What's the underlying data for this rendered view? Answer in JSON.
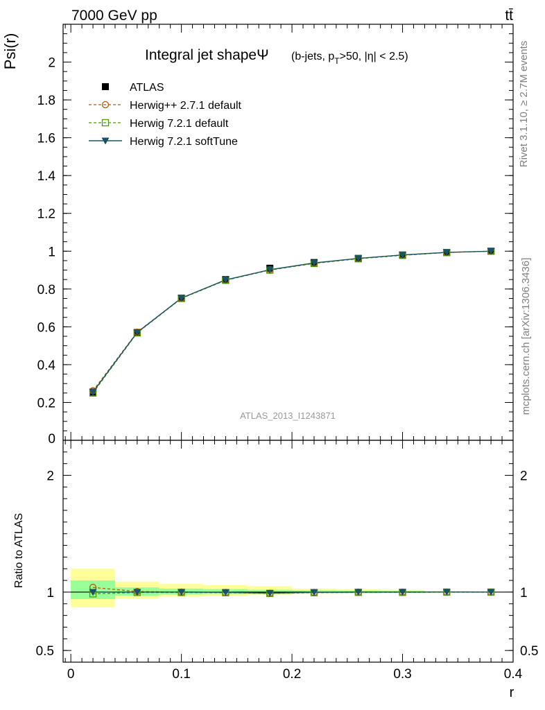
{
  "header": {
    "left": "7000 GeV pp",
    "right": "tt̄"
  },
  "side_labels": {
    "rivet": "Rivet 3.1.10, ≥ 2.7M events",
    "mcplots": "mcplots.cern.ch [arXiv:1306.3436]"
  },
  "watermark": "ATLAS_2013_I1243871",
  "colors": {
    "atlas": "#000000",
    "herwigpp": "#b35900",
    "herwig72": "#4d9900",
    "softtune": "#1a5266",
    "band_inner": "#99ff99",
    "band_outer": "#ffff99"
  },
  "chart_data": [
    {
      "type": "line",
      "title": "Integral jet shapeΨ",
      "title_parts": {
        "main": "Integral jet shapeΨ",
        "sub_open": "(b-jets, p",
        "sub_index": "T",
        "sub_rest": ">50, |η| < 2.5)"
      },
      "ylabel": "Psi(r)",
      "ylim": [
        0,
        2.2
      ],
      "xlim": [
        -0.007,
        0.4
      ],
      "yticks": [
        {
          "v": 0,
          "label": "0"
        },
        {
          "v": 0.2,
          "label": "0.2"
        },
        {
          "v": 0.4,
          "label": "0.4"
        },
        {
          "v": 0.6,
          "label": "0.6"
        },
        {
          "v": 0.8,
          "label": "0.8"
        },
        {
          "v": 1,
          "label": "1"
        },
        {
          "v": 1.2,
          "label": "1.2"
        },
        {
          "v": 1.4,
          "label": "1.4"
        },
        {
          "v": 1.6,
          "label": "1.6"
        },
        {
          "v": 1.8,
          "label": "1.8"
        },
        {
          "v": 2,
          "label": "2"
        }
      ],
      "x": [
        0.02,
        0.06,
        0.1,
        0.14,
        0.18,
        0.22,
        0.26,
        0.3,
        0.34,
        0.38
      ],
      "series": [
        {
          "name": "ATLAS",
          "values": [
            0.255,
            0.57,
            0.752,
            0.85,
            0.91,
            0.94,
            0.962,
            0.98,
            0.993,
            1.0
          ]
        },
        {
          "name": "Herwig++ 2.7.1 default",
          "values": [
            0.262,
            0.572,
            0.752,
            0.848,
            0.902,
            0.937,
            0.962,
            0.98,
            0.993,
            1.0
          ]
        },
        {
          "name": "Herwig 7.2.1 default",
          "values": [
            0.25,
            0.568,
            0.75,
            0.846,
            0.9,
            0.935,
            0.96,
            0.978,
            0.993,
            1.0
          ]
        },
        {
          "name": "Herwig 7.2.1 softTune",
          "values": [
            0.255,
            0.57,
            0.752,
            0.848,
            0.902,
            0.938,
            0.962,
            0.98,
            0.994,
            1.0
          ]
        }
      ]
    },
    {
      "type": "line",
      "ylabel": "Ratio to ATLAS",
      "xlabel": "r",
      "ylim": [
        0.4,
        2.3
      ],
      "xlim": [
        -0.007,
        0.4
      ],
      "yticks": [
        {
          "v": 0.5,
          "label": "0.5"
        },
        {
          "v": 1,
          "label": "1"
        },
        {
          "v": 2,
          "label": "2"
        }
      ],
      "xticks": [
        {
          "v": 0,
          "label": "0"
        },
        {
          "v": 0.1,
          "label": "0.1"
        },
        {
          "v": 0.2,
          "label": "0.2"
        },
        {
          "v": 0.3,
          "label": "0.3"
        },
        {
          "v": 0.4,
          "label": "0.4"
        }
      ],
      "x": [
        0.02,
        0.06,
        0.1,
        0.14,
        0.18,
        0.22,
        0.26,
        0.3,
        0.34,
        0.38
      ],
      "bands": {
        "edges": [
          0.0,
          0.04,
          0.08,
          0.12,
          0.16,
          0.2,
          0.24,
          0.28,
          0.32,
          0.36,
          0.4
        ],
        "inner": [
          [
            0.94,
            1.1
          ],
          [
            0.97,
            1.04
          ],
          [
            0.98,
            1.03
          ],
          [
            0.985,
            1.025
          ],
          [
            0.985,
            1.02
          ],
          [
            0.99,
            1.015
          ],
          [
            0.99,
            1.012
          ],
          [
            0.993,
            1.01
          ],
          [
            0.996,
            1.005
          ],
          [
            0.998,
            1.002
          ]
        ],
        "outer": [
          [
            0.87,
            1.2
          ],
          [
            0.945,
            1.09
          ],
          [
            0.96,
            1.07
          ],
          [
            0.965,
            1.06
          ],
          [
            0.975,
            1.05
          ],
          [
            0.985,
            1.03
          ],
          [
            0.987,
            1.025
          ],
          [
            0.99,
            1.02
          ],
          [
            0.995,
            1.006
          ],
          [
            0.998,
            1.002
          ]
        ]
      },
      "series": [
        {
          "name": "Herwig++ 2.7.1 default",
          "values": [
            1.04,
            1.005,
            1.0,
            0.997,
            0.991,
            0.997,
            1.0,
            1.0,
            1.0,
            1.0
          ]
        },
        {
          "name": "Herwig 7.2.1 default",
          "values": [
            0.985,
            0.997,
            0.997,
            0.995,
            0.989,
            0.995,
            0.998,
            0.998,
            1.0,
            1.0
          ]
        },
        {
          "name": "Herwig 7.2.1 softTune",
          "values": [
            1.0,
            1.0,
            1.0,
            0.998,
            0.991,
            0.998,
            1.0,
            1.0,
            1.001,
            1.0
          ]
        }
      ]
    }
  ]
}
